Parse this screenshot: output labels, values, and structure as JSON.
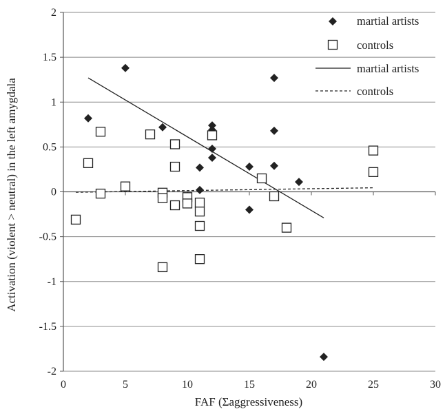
{
  "chart_data": {
    "type": "scatter",
    "title": "",
    "xlabel": "FAF (Σaggressiveness)",
    "ylabel": "Activation (violent > neutral) in the left amygdala",
    "xlim": [
      0,
      30
    ],
    "ylim": [
      -2,
      2
    ],
    "x_ticks": [
      "0",
      "5",
      "10",
      "15",
      "20",
      "25",
      "30"
    ],
    "y_ticks": [
      "-2",
      "-1.5",
      "-1",
      "-0.5",
      "0",
      "0.5",
      "1",
      "1.5",
      "2"
    ],
    "grid": "horizontal",
    "legend_position": "top-right",
    "series": [
      {
        "name": "martial artists",
        "marker": "diamond",
        "color": "#222222",
        "points": [
          [
            2,
            0.82
          ],
          [
            5,
            1.38
          ],
          [
            8,
            0.72
          ],
          [
            11,
            0.27
          ],
          [
            11,
            0.02
          ],
          [
            12,
            0.74
          ],
          [
            12,
            0.69
          ],
          [
            12,
            0.48
          ],
          [
            12,
            0.38
          ],
          [
            15,
            0.28
          ],
          [
            15,
            -0.2
          ],
          [
            17,
            1.27
          ],
          [
            17,
            0.68
          ],
          [
            17,
            0.29
          ],
          [
            19,
            0.11
          ],
          [
            21,
            -1.84
          ]
        ]
      },
      {
        "name": "controls",
        "marker": "square",
        "color": "#222222",
        "points": [
          [
            1,
            -0.31
          ],
          [
            2,
            0.32
          ],
          [
            3,
            0.67
          ],
          [
            3,
            -0.02
          ],
          [
            5,
            0.06
          ],
          [
            7,
            0.64
          ],
          [
            8,
            -0.01
          ],
          [
            8,
            -0.07
          ],
          [
            8,
            -0.84
          ],
          [
            9,
            0.53
          ],
          [
            9,
            0.28
          ],
          [
            9,
            -0.15
          ],
          [
            10,
            -0.06
          ],
          [
            10,
            -0.13
          ],
          [
            11,
            -0.12
          ],
          [
            11,
            -0.22
          ],
          [
            11,
            -0.38
          ],
          [
            11,
            -0.75
          ],
          [
            12,
            0.63
          ],
          [
            16,
            0.15
          ],
          [
            17,
            -0.05
          ],
          [
            18,
            -0.4
          ],
          [
            25,
            0.46
          ],
          [
            25,
            0.22
          ]
        ]
      }
    ],
    "trendlines": [
      {
        "name": "martial artists",
        "style": "solid",
        "x": [
          2,
          21
        ],
        "y": [
          1.27,
          -0.29
        ]
      },
      {
        "name": "controls",
        "style": "dashed",
        "x": [
          1,
          25
        ],
        "y": [
          -0.005,
          0.045
        ]
      }
    ]
  }
}
